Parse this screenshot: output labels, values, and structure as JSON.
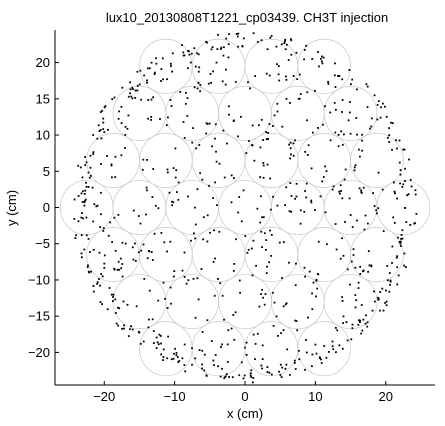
{
  "chart_data": {
    "type": "scatter",
    "title": "lux10_20130808T1221_cp03439. CH3T injection",
    "xlabel": "x (cm)",
    "ylabel": "y (cm)",
    "xlim": [
      -27,
      27
    ],
    "ylim": [
      -24.5,
      24.5
    ],
    "xticks": [
      -20,
      -10,
      0,
      10,
      20
    ],
    "yticks": [
      -20,
      -15,
      -10,
      -5,
      0,
      5,
      10,
      15,
      20
    ],
    "xtick_labels": [
      "−20",
      "−10",
      "0",
      "10",
      "20"
    ],
    "ytick_labels": [
      "−20",
      "−15",
      "−10",
      "−5",
      "0",
      "5",
      "10",
      "15",
      "20"
    ],
    "grid": false,
    "legend": "none",
    "colors": {
      "points": "#000000",
      "circles": "#c8c8c8",
      "axes": "#000000"
    },
    "pmt_radius_cm": 3.75,
    "pmt_spacing_cm": 7.5,
    "detector_radius_cm": 24.5,
    "scatter_approx_count": 900,
    "scatter_note": "events uniformly distributed inside detector with a dense ring near the wall"
  }
}
